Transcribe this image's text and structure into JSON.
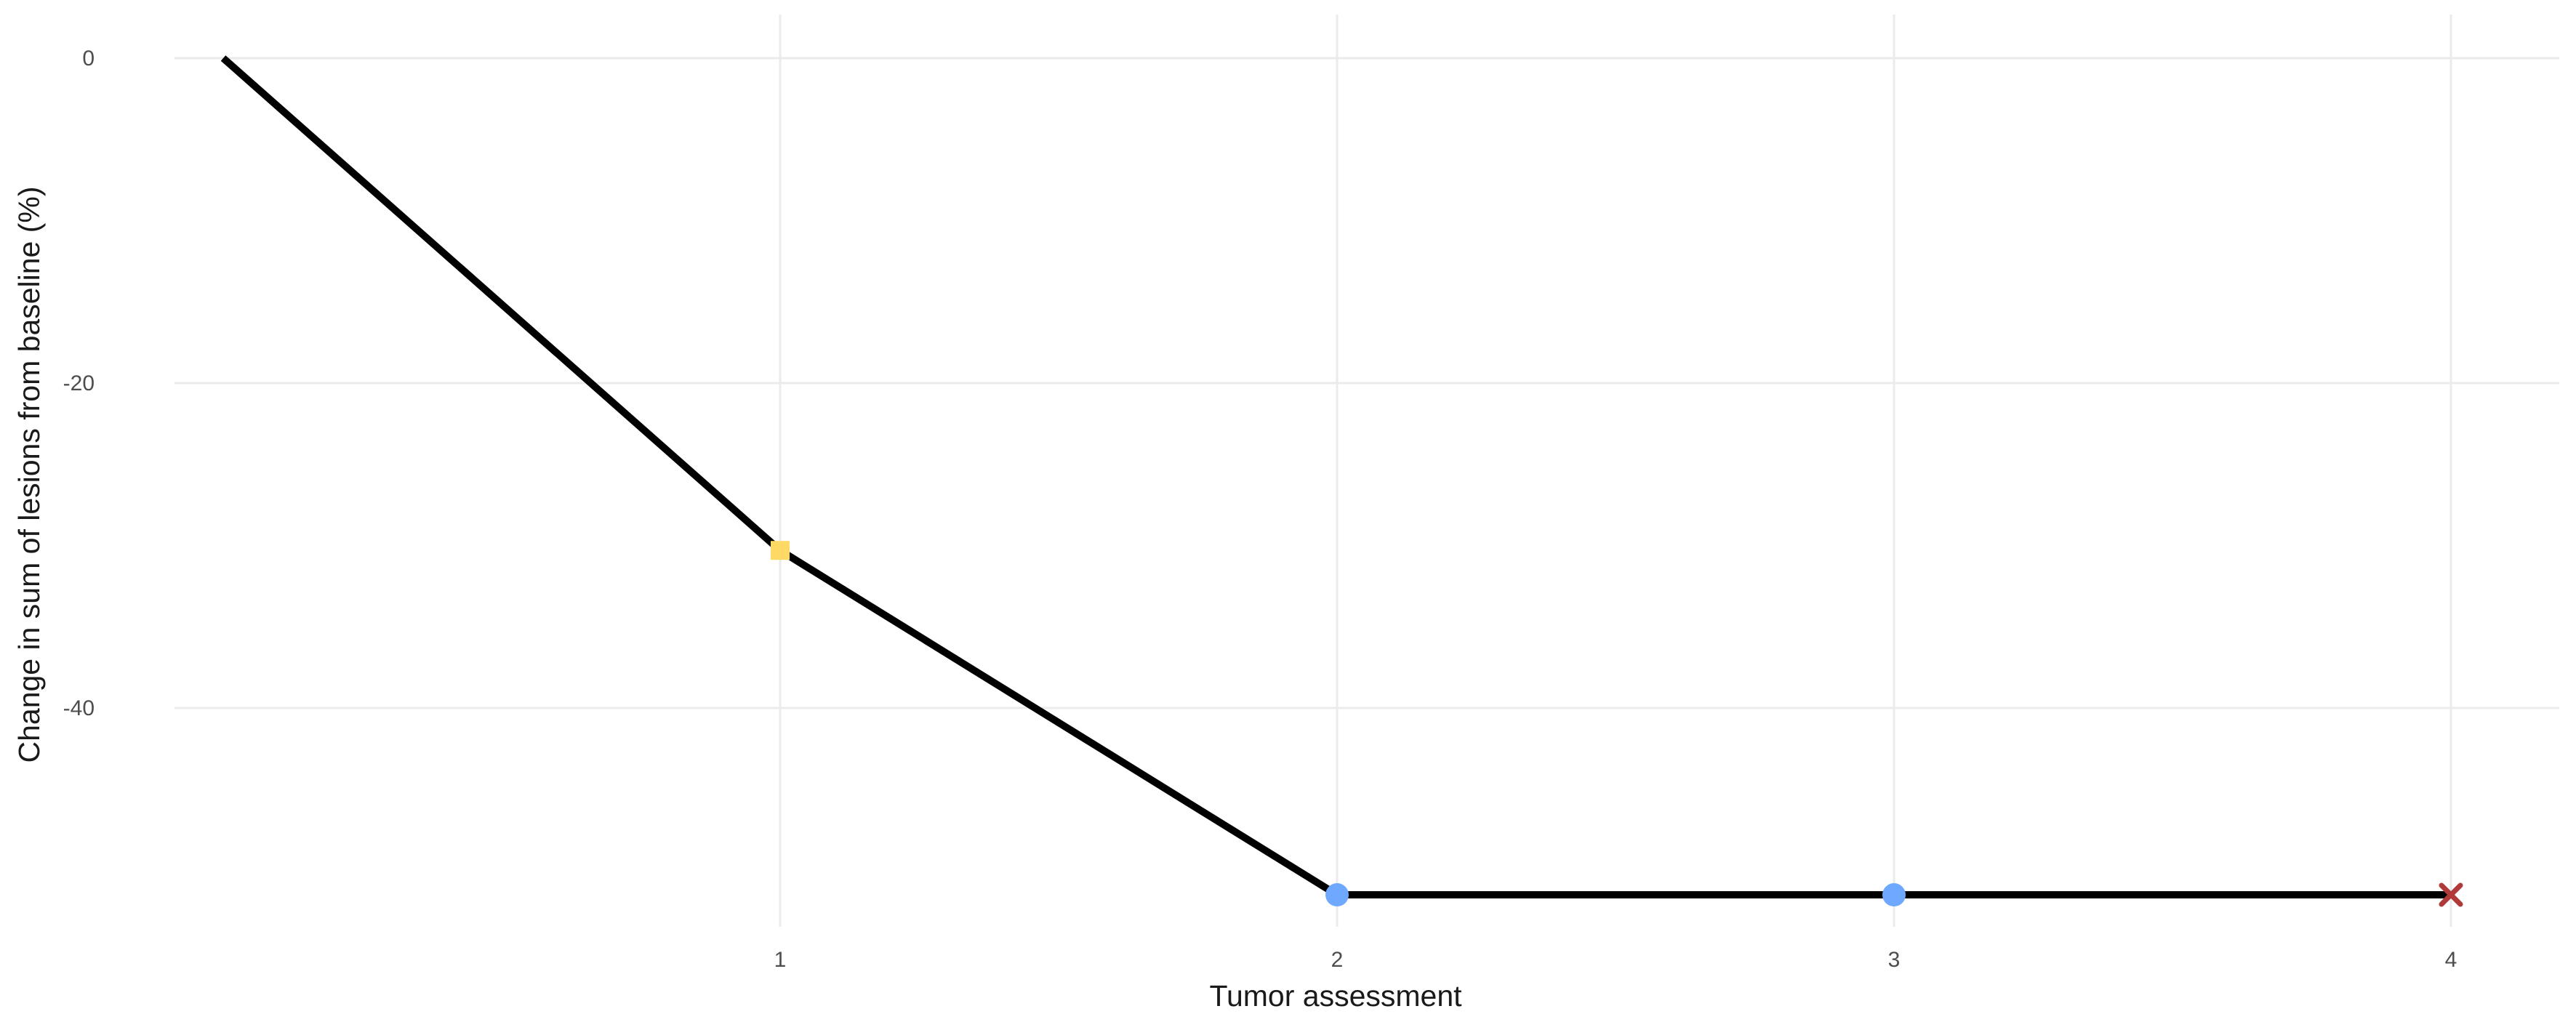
{
  "chart_data": {
    "type": "line",
    "xlabel": "Tumor assessment",
    "ylabel": "Change in sum of lesions from baseline (%)",
    "x_ticks": [
      1,
      2,
      3,
      4
    ],
    "y_ticks": [
      0,
      -20,
      -40
    ],
    "grid": true,
    "series": [
      {
        "color": "#000000",
        "points": [
          {
            "x": 0,
            "y": 0,
            "marker": "none"
          },
          {
            "x": 1,
            "y": -30.3,
            "marker": "square",
            "color": "#FFD966"
          },
          {
            "x": 2,
            "y": -51.5,
            "marker": "circle",
            "color": "#6FA8FF"
          },
          {
            "x": 3,
            "y": -51.5,
            "marker": "circle",
            "color": "#6FA8FF"
          },
          {
            "x": 4,
            "y": -51.5,
            "marker": "cross",
            "color": "#B03A3A"
          }
        ]
      }
    ]
  }
}
